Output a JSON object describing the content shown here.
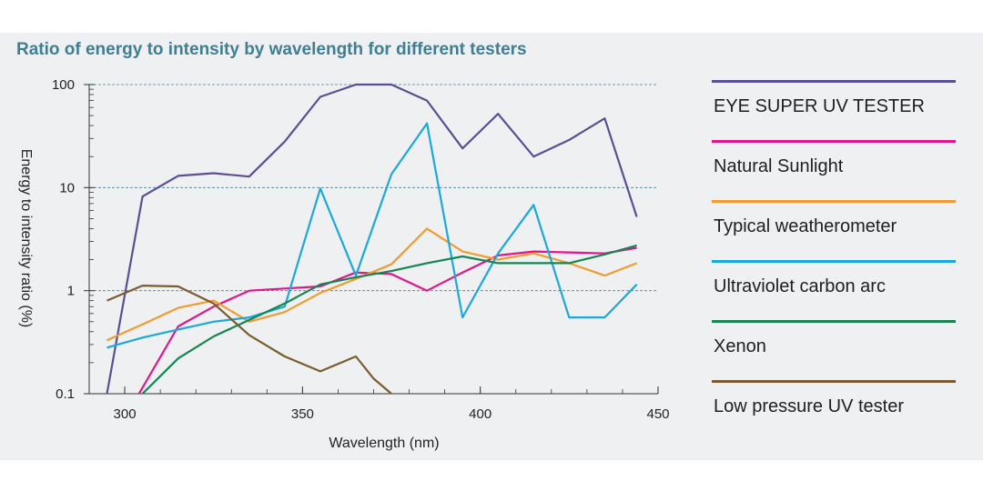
{
  "chart_data": {
    "type": "line",
    "title": "Ratio of energy to intensity by wavelength for different testers",
    "xlabel": "Wavelength (nm)",
    "ylabel": "Energy to intensity ratio (%)",
    "xlim": [
      290,
      450
    ],
    "ylim": [
      0.1,
      100
    ],
    "yscale": "log",
    "xticks": [
      "300",
      "350",
      "400",
      "450"
    ],
    "yticks": [
      "0.1",
      "1",
      "10",
      "100"
    ],
    "grid": "horizontal dashed at decades",
    "legend_position": "right",
    "series": [
      {
        "name": "EYE SUPER UV TESTER",
        "color": "#5b4e96",
        "x": [
          295,
          305,
          315,
          325,
          335,
          345,
          355,
          365,
          375,
          385,
          395,
          405,
          415,
          425,
          435,
          444
        ],
        "y": [
          0.1,
          8.2,
          13,
          13.8,
          12.8,
          28,
          76,
          100,
          100,
          70,
          24,
          52,
          20,
          29,
          47,
          5.2
        ]
      },
      {
        "name": "Natural Sunlight",
        "color": "#e0168a",
        "x": [
          304,
          315,
          325,
          335,
          345,
          355,
          365,
          375,
          385,
          395,
          405,
          415,
          425,
          435,
          444
        ],
        "y": [
          0.1,
          0.45,
          0.7,
          1.0,
          1.05,
          1.1,
          1.5,
          1.45,
          1.0,
          1.5,
          2.2,
          2.4,
          2.35,
          2.3,
          2.6
        ]
      },
      {
        "name": "Typical weatherometer",
        "color": "#f29b30",
        "x": [
          295,
          305,
          315,
          325,
          335,
          345,
          355,
          365,
          375,
          385,
          395,
          405,
          415,
          425,
          435,
          444
        ],
        "y": [
          0.33,
          0.47,
          0.68,
          0.8,
          0.5,
          0.62,
          0.95,
          1.3,
          1.8,
          4.0,
          2.4,
          2.0,
          2.3,
          1.85,
          1.4,
          1.85
        ]
      },
      {
        "name": "Ultraviolet carbon arc",
        "color": "#1aa8dd",
        "x": [
          295,
          305,
          315,
          325,
          335,
          345,
          355,
          365,
          375,
          385,
          395,
          405,
          415,
          425,
          435,
          444
        ],
        "y": [
          0.28,
          0.35,
          0.42,
          0.5,
          0.55,
          0.7,
          9.8,
          1.4,
          13.5,
          42,
          0.55,
          2.3,
          6.8,
          0.55,
          0.55,
          1.15
        ]
      },
      {
        "name": "Xenon",
        "color": "#168552",
        "x": [
          305,
          315,
          325,
          335,
          345,
          355,
          365,
          375,
          385,
          395,
          405,
          415,
          425,
          435,
          444
        ],
        "y": [
          0.1,
          0.22,
          0.36,
          0.52,
          0.75,
          1.15,
          1.35,
          1.55,
          1.85,
          2.15,
          1.85,
          1.85,
          1.85,
          2.25,
          2.75
        ]
      },
      {
        "name": "Low pressure UV tester",
        "color": "#7a5c30",
        "x": [
          295,
          305,
          315,
          325,
          335,
          345,
          355,
          365,
          370,
          375
        ],
        "y": [
          0.8,
          1.12,
          1.1,
          0.75,
          0.37,
          0.23,
          0.165,
          0.23,
          0.14,
          0.1
        ]
      }
    ]
  }
}
